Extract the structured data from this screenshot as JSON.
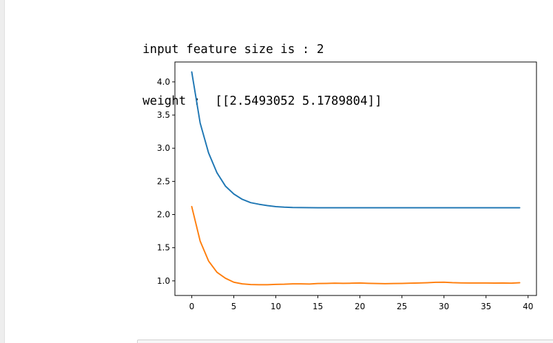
{
  "output": {
    "line1": "input feature size is : 2",
    "line2": "weight :  [[2.5493052 5.1789804]]"
  },
  "colors": {
    "series_blue": "#1f77b4",
    "series_orange": "#ff7f0e"
  },
  "chart_data": {
    "type": "line",
    "title": "",
    "xlabel": "",
    "ylabel": "",
    "xlim": [
      -2,
      41
    ],
    "ylim": [
      0.78,
      4.3
    ],
    "xticks": [
      0,
      5,
      10,
      15,
      20,
      25,
      30,
      35,
      40
    ],
    "xtick_labels": [
      "0",
      "5",
      "10",
      "15",
      "20",
      "25",
      "30",
      "35",
      "40"
    ],
    "yticks": [
      1.0,
      1.5,
      2.0,
      2.5,
      3.0,
      3.5,
      4.0
    ],
    "ytick_labels": [
      "1.0",
      "1.5",
      "2.0",
      "2.5",
      "3.0",
      "3.5",
      "4.0"
    ],
    "grid": false,
    "legend": "none",
    "x": [
      0,
      1,
      2,
      3,
      4,
      5,
      6,
      7,
      8,
      9,
      10,
      11,
      12,
      13,
      14,
      15,
      16,
      17,
      18,
      19,
      20,
      21,
      22,
      23,
      24,
      25,
      26,
      27,
      28,
      29,
      30,
      31,
      32,
      33,
      34,
      35,
      36,
      37,
      38,
      39
    ],
    "series": [
      {
        "color": "#1f77b4",
        "values": [
          4.15,
          3.38,
          2.93,
          2.63,
          2.43,
          2.31,
          2.23,
          2.18,
          2.155,
          2.135,
          2.12,
          2.112,
          2.107,
          2.105,
          2.104,
          2.103,
          2.103,
          2.103,
          2.103,
          2.103,
          2.103,
          2.103,
          2.103,
          2.103,
          2.103,
          2.103,
          2.103,
          2.103,
          2.103,
          2.103,
          2.103,
          2.103,
          2.103,
          2.103,
          2.103,
          2.103,
          2.103,
          2.103,
          2.103,
          2.103
        ]
      },
      {
        "color": "#ff7f0e",
        "values": [
          2.12,
          1.6,
          1.3,
          1.13,
          1.04,
          0.98,
          0.955,
          0.945,
          0.942,
          0.942,
          0.948,
          0.95,
          0.955,
          0.955,
          0.953,
          0.96,
          0.962,
          0.965,
          0.963,
          0.965,
          0.968,
          0.963,
          0.96,
          0.958,
          0.96,
          0.962,
          0.965,
          0.968,
          0.972,
          0.978,
          0.98,
          0.973,
          0.97,
          0.968,
          0.968,
          0.968,
          0.967,
          0.968,
          0.965,
          0.972
        ]
      }
    ]
  }
}
